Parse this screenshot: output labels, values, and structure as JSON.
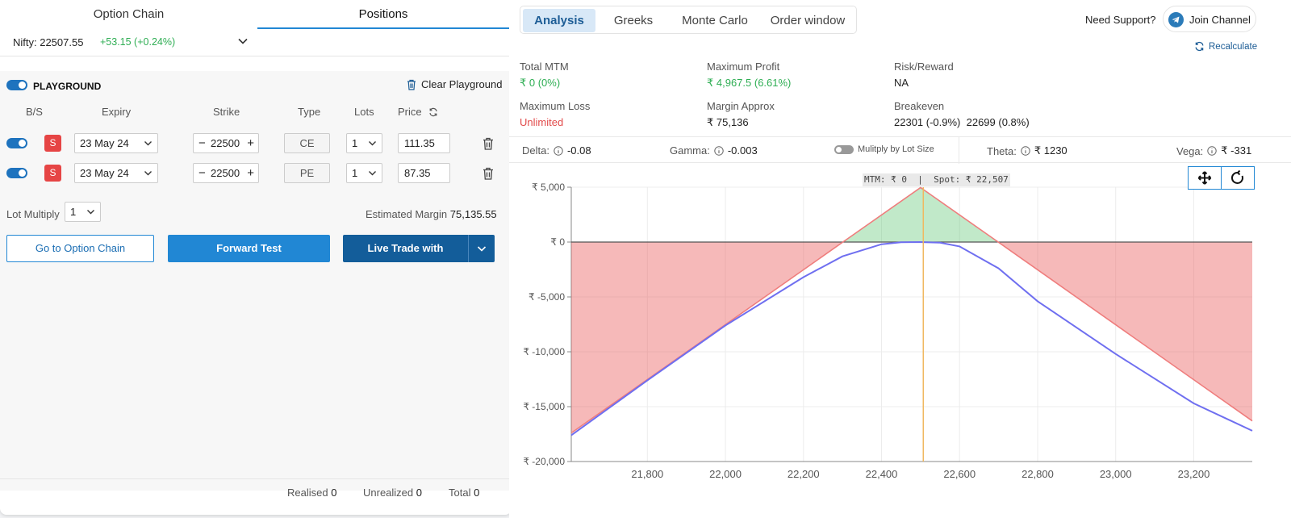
{
  "left": {
    "tabs": [
      "Option Chain",
      "Positions"
    ],
    "nifty": {
      "label": "Nifty: 22507.55",
      "change": "+53.15 (+0.24%)"
    },
    "playground": {
      "title": "PLAYGROUND",
      "clear_label": "Clear Playground",
      "headers": {
        "bs": "B/S",
        "expiry": "Expiry",
        "strike": "Strike",
        "type": "Type",
        "lots": "Lots",
        "price": "Price"
      },
      "rows": [
        {
          "bs": "S",
          "expiry": "23 May 24",
          "strike": "22500",
          "type": "CE",
          "lots": "1",
          "price": "111.35"
        },
        {
          "bs": "S",
          "expiry": "23 May 24",
          "strike": "22500",
          "type": "PE",
          "lots": "1",
          "price": "87.35"
        }
      ],
      "lot_multiply_label": "Lot Multiply",
      "lot_multiply_value": "1",
      "estimated_margin_label": "Estimated Margin",
      "estimated_margin_value": "75,135.55"
    },
    "buttons": {
      "option_chain": "Go to Option Chain",
      "forward_test": "Forward Test",
      "live_trade": "Live Trade with"
    },
    "footer": {
      "realised_label": "Realised",
      "realised": "0",
      "unrealized_label": "Unrealized",
      "unrealized": "0",
      "total_label": "Total",
      "total": "0"
    }
  },
  "right": {
    "tabs": [
      "Analysis",
      "Greeks",
      "Monte Carlo",
      "Order window"
    ],
    "active_tab": "Analysis",
    "support_label": "Need Support?",
    "join_label": "Join Channel",
    "recalculate_label": "Recalculate",
    "metrics": {
      "total_mtm": {
        "label": "Total MTM",
        "value": "₹ 0 (0%)"
      },
      "max_profit": {
        "label": "Maximum Profit",
        "value": "₹ 4,967.5 (6.61%)"
      },
      "risk_reward": {
        "label": "Risk/Reward",
        "value": "NA"
      },
      "max_loss": {
        "label": "Maximum Loss",
        "value": "Unlimited"
      },
      "margin": {
        "label": "Margin Approx",
        "value": "₹ 75,136"
      },
      "breakeven": {
        "label": "Breakeven",
        "value": "22301 (-0.9%)  22699 (0.8%)"
      }
    },
    "greeks": {
      "delta": {
        "label": "Delta:",
        "value": "-0.08"
      },
      "gamma": {
        "label": "Gamma:",
        "value": "-0.003"
      },
      "multiply_label": "Mulitply by Lot Size",
      "theta": {
        "label": "Theta:",
        "value": "₹ 1230"
      },
      "vega": {
        "label": "Vega:",
        "value": "₹ -331"
      }
    },
    "tooltip": "MTM: ₹ 0  |  Spot: ₹ 22,507"
  },
  "colors": {
    "accent": "#2187d4",
    "dark_accent": "#135d9a",
    "profit": "#2fae54",
    "loss": "#e24b4b",
    "sell_badge": "#e64545",
    "spot_line": "#f0b860",
    "mtm_line": "#6f6ff0"
  },
  "chart_data": {
    "type": "area",
    "xlabel": "",
    "ylabel": "",
    "xlim": [
      21605,
      23350
    ],
    "ylim": [
      -20000,
      5000
    ],
    "x_ticks": [
      "21,800",
      "22,000",
      "22,200",
      "22,400",
      "22,600",
      "22,800",
      "23,000",
      "23,200"
    ],
    "x_tick_values": [
      21800,
      22000,
      22200,
      22400,
      22600,
      22800,
      23000,
      23200
    ],
    "y_ticks": [
      "₹ 5,000",
      "₹ 0",
      "₹ -5,000",
      "₹ -10,000",
      "₹ -15,000",
      "₹ -20,000"
    ],
    "y_tick_values": [
      5000,
      0,
      -5000,
      -10000,
      -15000,
      -20000
    ],
    "spot": 22507,
    "series": [
      {
        "values_x": [
          21605,
          22301,
          22500,
          22699,
          23350
        ],
        "values_y": [
          -17400,
          0,
          4967.5,
          0,
          -16300
        ]
      },
      {
        "values_x": [
          21605,
          21800,
          22000,
          22200,
          22300,
          22400,
          22450,
          22500,
          22550,
          22600,
          22700,
          22800,
          23000,
          23200,
          23350
        ],
        "values_y": [
          -17600,
          -12600,
          -7600,
          -3200,
          -1300,
          -200,
          -20,
          0,
          -60,
          -400,
          -2400,
          -5400,
          -10200,
          -14700,
          -17200
        ]
      }
    ]
  }
}
